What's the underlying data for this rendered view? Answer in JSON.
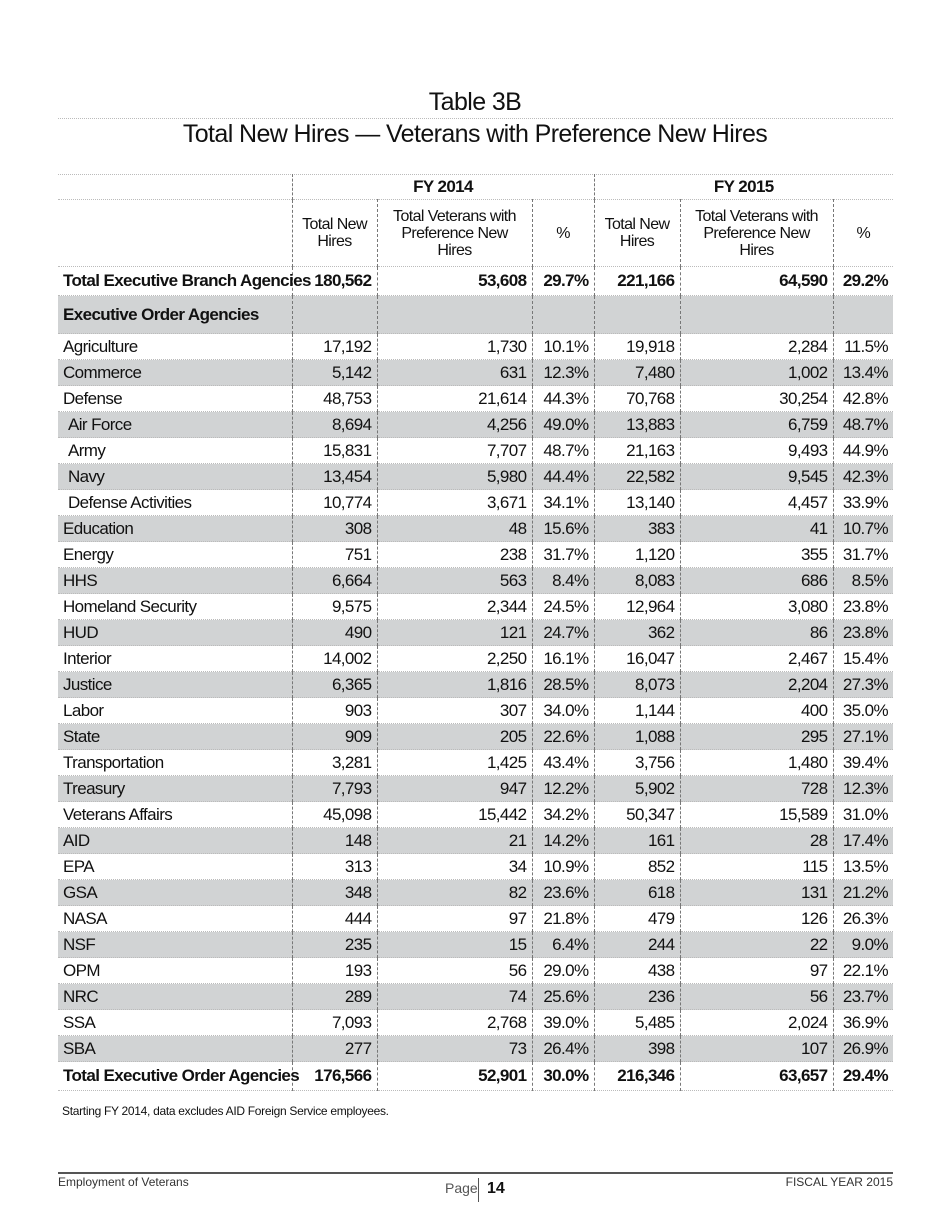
{
  "title": "Table 3B",
  "subtitle": "Total New Hires — Veterans with Preference New Hires",
  "years": [
    "FY 2014",
    "FY 2015"
  ],
  "columns": [
    "Total New Hires",
    "Total Veterans with Preference New Hires",
    "%"
  ],
  "total_branch": {
    "label": "Total Executive Branch Agencies",
    "values": [
      "180,562",
      "53,608",
      "29.7%",
      "221,166",
      "64,590",
      "29.2%"
    ]
  },
  "section_label": "Executive Order Agencies",
  "rows": [
    {
      "label": "Agriculture",
      "values": [
        "17,192",
        "1,730",
        "10.1%",
        "19,918",
        "2,284",
        "11.5%"
      ]
    },
    {
      "label": "Commerce",
      "values": [
        "5,142",
        "631",
        "12.3%",
        "7,480",
        "1,002",
        "13.4%"
      ]
    },
    {
      "label": "Defense",
      "values": [
        "48,753",
        "21,614",
        "44.3%",
        "70,768",
        "30,254",
        "42.8%"
      ]
    },
    {
      "label": "Air Force",
      "indent": true,
      "values": [
        "8,694",
        "4,256",
        "49.0%",
        "13,883",
        "6,759",
        "48.7%"
      ]
    },
    {
      "label": "Army",
      "indent": true,
      "values": [
        "15,831",
        "7,707",
        "48.7%",
        "21,163",
        "9,493",
        "44.9%"
      ]
    },
    {
      "label": "Navy",
      "indent": true,
      "values": [
        "13,454",
        "5,980",
        "44.4%",
        "22,582",
        "9,545",
        "42.3%"
      ]
    },
    {
      "label": "Defense Activities",
      "indent": true,
      "values": [
        "10,774",
        "3,671",
        "34.1%",
        "13,140",
        "4,457",
        "33.9%"
      ]
    },
    {
      "label": "Education",
      "values": [
        "308",
        "48",
        "15.6%",
        "383",
        "41",
        "10.7%"
      ]
    },
    {
      "label": "Energy",
      "values": [
        "751",
        "238",
        "31.7%",
        "1,120",
        "355",
        "31.7%"
      ]
    },
    {
      "label": "HHS",
      "values": [
        "6,664",
        "563",
        "8.4%",
        "8,083",
        "686",
        "8.5%"
      ]
    },
    {
      "label": "Homeland Security",
      "values": [
        "9,575",
        "2,344",
        "24.5%",
        "12,964",
        "3,080",
        "23.8%"
      ]
    },
    {
      "label": "HUD",
      "values": [
        "490",
        "121",
        "24.7%",
        "362",
        "86",
        "23.8%"
      ]
    },
    {
      "label": "Interior",
      "values": [
        "14,002",
        "2,250",
        "16.1%",
        "16,047",
        "2,467",
        "15.4%"
      ]
    },
    {
      "label": "Justice",
      "values": [
        "6,365",
        "1,816",
        "28.5%",
        "8,073",
        "2,204",
        "27.3%"
      ]
    },
    {
      "label": "Labor",
      "values": [
        "903",
        "307",
        "34.0%",
        "1,144",
        "400",
        "35.0%"
      ]
    },
    {
      "label": "State",
      "values": [
        "909",
        "205",
        "22.6%",
        "1,088",
        "295",
        "27.1%"
      ]
    },
    {
      "label": "Transportation",
      "values": [
        "3,281",
        "1,425",
        "43.4%",
        "3,756",
        "1,480",
        "39.4%"
      ]
    },
    {
      "label": "Treasury",
      "values": [
        "7,793",
        "947",
        "12.2%",
        "5,902",
        "728",
        "12.3%"
      ]
    },
    {
      "label": "Veterans Affairs",
      "values": [
        "45,098",
        "15,442",
        "34.2%",
        "50,347",
        "15,589",
        "31.0%"
      ]
    },
    {
      "label": "AID",
      "values": [
        "148",
        "21",
        "14.2%",
        "161",
        "28",
        "17.4%"
      ]
    },
    {
      "label": "EPA",
      "values": [
        "313",
        "34",
        "10.9%",
        "852",
        "115",
        "13.5%"
      ]
    },
    {
      "label": "GSA",
      "values": [
        "348",
        "82",
        "23.6%",
        "618",
        "131",
        "21.2%"
      ]
    },
    {
      "label": "NASA",
      "values": [
        "444",
        "97",
        "21.8%",
        "479",
        "126",
        "26.3%"
      ]
    },
    {
      "label": "NSF",
      "values": [
        "235",
        "15",
        "6.4%",
        "244",
        "22",
        "9.0%"
      ]
    },
    {
      "label": "OPM",
      "values": [
        "193",
        "56",
        "29.0%",
        "438",
        "97",
        "22.1%"
      ]
    },
    {
      "label": "NRC",
      "values": [
        "289",
        "74",
        "25.6%",
        "236",
        "56",
        "23.7%"
      ]
    },
    {
      "label": "SSA",
      "values": [
        "7,093",
        "2,768",
        "39.0%",
        "5,485",
        "2,024",
        "36.9%"
      ]
    },
    {
      "label": "SBA",
      "values": [
        "277",
        "73",
        "26.4%",
        "398",
        "107",
        "26.9%"
      ]
    }
  ],
  "total_eoa": {
    "label": "Total Executive Order Agencies",
    "values": [
      "176,566",
      "52,901",
      "30.0%",
      "216,346",
      "63,657",
      "29.4%"
    ]
  },
  "note": "Starting FY 2014, data excludes AID Foreign Service employees.",
  "footer": {
    "left": "Employment of Veterans",
    "page_label": "Page",
    "page_number": "14",
    "right": "FISCAL YEAR 2015"
  },
  "colors": {
    "row_shade": "#d1d3d4"
  }
}
